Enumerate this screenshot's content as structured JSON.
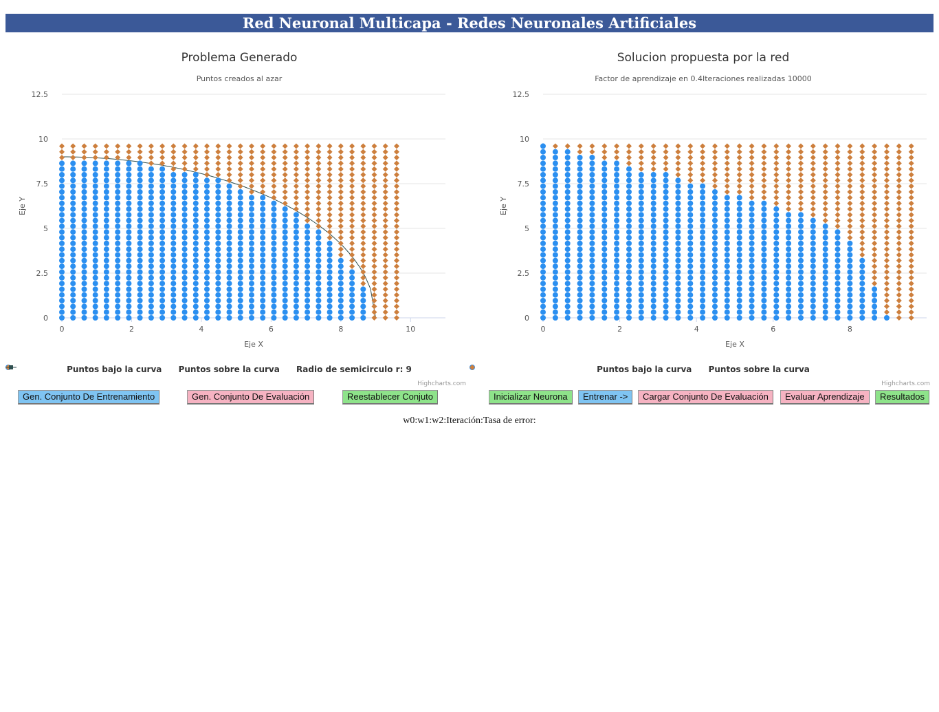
{
  "header": {
    "title": "Red Neuronal Multicapa - Redes Neuronales Artificiales"
  },
  "colors": {
    "banner": "#3b5998",
    "below": "#2b8ff0",
    "above": "#cd7f3d",
    "curve": "#2f4f4f",
    "btn_blue": "#7fc4f2",
    "btn_pink": "#f6b3c2",
    "btn_green": "#8ee38a"
  },
  "left_chart": {
    "title": "Problema Generado",
    "subtitle": "Puntos creados al azar",
    "credits": "Highcharts.com",
    "legend": [
      "Puntos bajo la curva",
      "Puntos sobre la curva",
      "Radio de semicirculo r: 9"
    ]
  },
  "right_chart": {
    "title": "Solucion propuesta por la red",
    "subtitle": "Factor de aprendizaje en 0.4Iteraciones realizadas 10000",
    "credits": "Highcharts.com",
    "legend": [
      "Puntos bajo la curva",
      "Puntos sobre la curva"
    ]
  },
  "buttons": {
    "gen_train": "Gen. Conjunto De Entrenamiento",
    "gen_eval": "Gen. Conjunto De Evaluación",
    "reset": "Reestablecer Conjuto",
    "init": "Inicializar Neurona",
    "train": "Entrenar ->",
    "load_eval": "Cargar Conjunto De Evaluación",
    "evaluate": "Evaluar Aprendizaje",
    "results": "Resultados"
  },
  "status": {
    "text": "w0:w1:w2:Iteración:Tasa de error:"
  },
  "chart_data": [
    {
      "type": "scatter",
      "title": "Problema Generado",
      "subtitle": "Puntos creados al azar",
      "xlabel": "Eje X",
      "ylabel": "Eje Y",
      "xlim": [
        0,
        11
      ],
      "ylim": [
        0,
        12.5
      ],
      "xticks": [
        0,
        2,
        4,
        6,
        8,
        10
      ],
      "yticks": [
        0,
        2.5,
        5,
        7.5,
        10
      ],
      "grid": true,
      "legend": "bottom",
      "grid_points": {
        "x_start": 0,
        "x_step": 0.32,
        "x_count": 31,
        "y_start": 0,
        "y_step": 0.32,
        "y_count": 31
      },
      "boundary_heights": [
        8.9,
        8.9,
        8.9,
        8.9,
        8.85,
        8.85,
        8.8,
        8.7,
        8.6,
        8.45,
        8.3,
        8.2,
        8.0,
        7.8,
        7.7,
        7.5,
        7.3,
        7.0,
        6.8,
        6.6,
        6.2,
        5.8,
        5.2,
        4.8,
        4.2,
        3.5,
        2.6,
        1.6,
        -1,
        -1,
        -1
      ],
      "series": [
        {
          "name": "Puntos bajo la curva",
          "marker": "circle"
        },
        {
          "name": "Puntos sobre la curva",
          "marker": "diamond"
        },
        {
          "name": "Radio de semicirculo r: 9",
          "type": "line",
          "radius": 9
        }
      ]
    },
    {
      "type": "scatter",
      "title": "Solucion propuesta por la red",
      "subtitle": "Factor de aprendizaje en 0.4Iteraciones realizadas 10000",
      "xlabel": "Eje X",
      "ylabel": "Eje Y",
      "xlim": [
        0,
        10
      ],
      "ylim": [
        0,
        12.5
      ],
      "xticks": [
        0,
        2,
        4,
        6,
        8
      ],
      "yticks": [
        0,
        2.5,
        5,
        7.5,
        10
      ],
      "grid": true,
      "legend": "bottom",
      "grid_points": {
        "x_start": 0,
        "x_step": 0.32,
        "x_count": 31,
        "y_start": 0,
        "y_step": 0.32,
        "y_count": 31
      },
      "boundary_heights": [
        9.8,
        9.5,
        9.5,
        9.2,
        9.2,
        8.9,
        8.9,
        8.6,
        8.3,
        8.2,
        8.0,
        7.9,
        7.6,
        7.6,
        7.3,
        7.0,
        7.0,
        6.7,
        6.7,
        6.3,
        6.0,
        6.0,
        5.7,
        5.4,
        5.1,
        4.4,
        3.2,
        1.6,
        0.0,
        -1,
        -1
      ],
      "series": [
        {
          "name": "Puntos bajo la curva",
          "marker": "circle"
        },
        {
          "name": "Puntos sobre la curva",
          "marker": "diamond"
        }
      ]
    }
  ]
}
